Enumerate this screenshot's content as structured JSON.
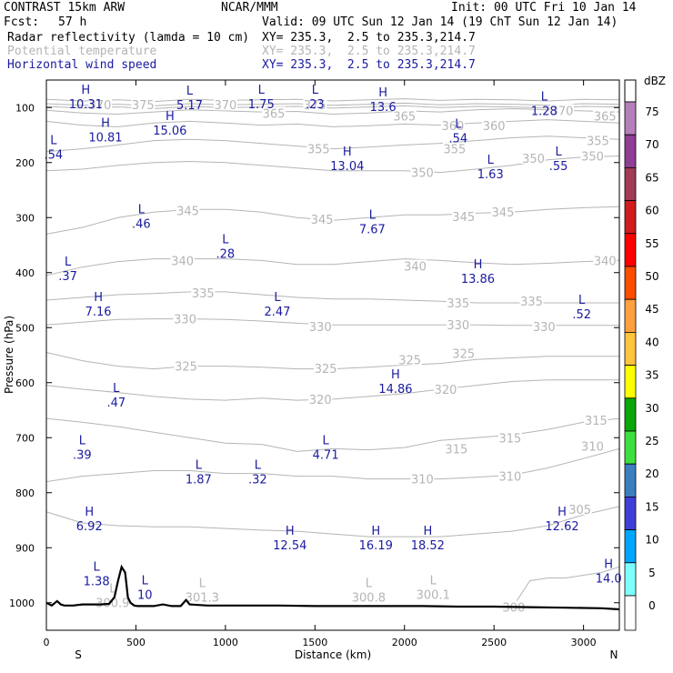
{
  "header": {
    "model": "CONTRAST 15km ARW",
    "center": "NCAR/MMM",
    "init": "Init: 00 UTC Fri 10 Jan 14",
    "fcst_label": "Fcst:",
    "fcst_value": "57 h",
    "valid": "Valid: 09 UTC Sun 12 Jan 14 (19 ChT Sun 12 Jan 14)"
  },
  "fields": [
    {
      "name": "Radar reflectivity (lamda = 10 cm)",
      "xy": "XY= 235.3,  2.5 to 235.3,214.7",
      "color": "#000000"
    },
    {
      "name": "Potential temperature",
      "xy": "XY= 235.3,  2.5 to 235.3,214.7",
      "color": "#b5b5b5"
    },
    {
      "name": "Horizontal wind speed",
      "xy": "XY= 235.3,  2.5 to 235.3,214.7",
      "color": "#1a1aa0"
    }
  ],
  "chart_data": {
    "type": "cross-section",
    "xlabel": "Distance (km)",
    "ylabel": "Pressure (hPa)",
    "xlim": [
      0,
      3200
    ],
    "ylim": [
      1050,
      50
    ],
    "x_ticks": [
      0,
      500,
      1000,
      1500,
      2000,
      2500,
      3000
    ],
    "y_ticks": [
      100,
      200,
      300,
      400,
      500,
      600,
      700,
      800,
      900,
      1000
    ],
    "south_label": "S",
    "north_label": "N",
    "south_x": 175,
    "north_x": 3125,
    "theta_lines": [
      {
        "label": "370",
        "x": [
          0,
          200,
          400,
          600,
          800,
          1000,
          1200,
          1400,
          1600,
          1800,
          2000,
          2200,
          2400,
          2600,
          2800,
          3000,
          3200
        ],
        "p": [
          85,
          88,
          86,
          89,
          85,
          87,
          86,
          85,
          88,
          86,
          84,
          87,
          85,
          86,
          88,
          85,
          86
        ]
      },
      {
        "label": "365",
        "x": [
          0,
          200,
          400,
          600,
          800,
          1000,
          1200,
          1400,
          1600,
          1800,
          2000,
          2200,
          2400,
          2600,
          2800,
          3000,
          3200
        ],
        "p": [
          105,
          110,
          112,
          108,
          104,
          106,
          108,
          107,
          112,
          110,
          106,
          108,
          104,
          102,
          104,
          106,
          108
        ]
      },
      {
        "label": "360",
        "x": [
          0,
          200,
          400,
          600,
          800,
          1000,
          1200,
          1400,
          1600,
          1800,
          2000,
          2200,
          2400,
          2600,
          2800,
          3000,
          3200
        ],
        "p": [
          125,
          132,
          135,
          128,
          125,
          128,
          132,
          130,
          135,
          133,
          130,
          132,
          128,
          125,
          122,
          125,
          128
        ]
      },
      {
        "label": "355",
        "x": [
          0,
          200,
          400,
          600,
          800,
          1000,
          1200,
          1400,
          1600,
          1800,
          2000,
          2200,
          2400,
          2600,
          2800,
          3000,
          3200
        ],
        "p": [
          180,
          175,
          168,
          160,
          158,
          160,
          165,
          170,
          175,
          172,
          168,
          165,
          160,
          155,
          152,
          155,
          158
        ]
      },
      {
        "label": "350",
        "x": [
          0,
          200,
          400,
          600,
          800,
          1000,
          1200,
          1400,
          1600,
          1800,
          2000,
          2200,
          2400,
          2600,
          2800,
          3000,
          3200
        ],
        "p": [
          215,
          212,
          205,
          200,
          198,
          200,
          205,
          210,
          215,
          215,
          215,
          218,
          212,
          205,
          195,
          190,
          188
        ]
      },
      {
        "label": "345",
        "x": [
          0,
          200,
          400,
          600,
          800,
          1000,
          1200,
          1400,
          1600,
          1800,
          2000,
          2200,
          2400,
          2600,
          2800,
          3000,
          3200
        ],
        "p": [
          330,
          318,
          300,
          290,
          285,
          285,
          290,
          300,
          305,
          300,
          295,
          295,
          292,
          290,
          285,
          282,
          280
        ]
      },
      {
        "label": "340",
        "x": [
          0,
          200,
          400,
          600,
          800,
          1000,
          1200,
          1400,
          1600,
          1800,
          2000,
          2200,
          2400,
          2600,
          2800,
          3000,
          3200
        ],
        "p": [
          405,
          390,
          380,
          375,
          375,
          375,
          378,
          385,
          385,
          380,
          375,
          378,
          382,
          385,
          383,
          380,
          378
        ]
      },
      {
        "label": "335",
        "x": [
          0,
          200,
          400,
          600,
          800,
          1000,
          1200,
          1400,
          1600,
          1800,
          2000,
          2200,
          2400,
          2600,
          2800,
          3000,
          3200
        ],
        "p": [
          450,
          445,
          440,
          438,
          435,
          435,
          440,
          445,
          448,
          448,
          450,
          452,
          455,
          455,
          455,
          455,
          455
        ]
      },
      {
        "label": "330",
        "x": [
          0,
          200,
          400,
          600,
          800,
          1000,
          1200,
          1400,
          1600,
          1800,
          2000,
          2200,
          2400,
          2600,
          2800,
          3000,
          3200
        ],
        "p": [
          495,
          490,
          485,
          484,
          484,
          485,
          488,
          492,
          495,
          495,
          495,
          495,
          495,
          496,
          496,
          496,
          496
        ]
      },
      {
        "label": "325",
        "x": [
          0,
          200,
          400,
          600,
          800,
          1000,
          1200,
          1400,
          1600,
          1800,
          2000,
          2200,
          2400,
          2600,
          2800,
          3000,
          3200
        ],
        "p": [
          545,
          560,
          570,
          575,
          570,
          570,
          572,
          575,
          575,
          572,
          568,
          565,
          558,
          555,
          552,
          552,
          552
        ]
      },
      {
        "label": "320",
        "x": [
          0,
          200,
          400,
          600,
          800,
          1000,
          1200,
          1400,
          1600,
          1800,
          2000,
          2200,
          2400,
          2600,
          2800,
          3000,
          3200
        ],
        "p": [
          605,
          612,
          618,
          625,
          630,
          632,
          628,
          632,
          630,
          625,
          620,
          612,
          605,
          598,
          595,
          595,
          595
        ]
      },
      {
        "label": "315",
        "x": [
          0,
          200,
          400,
          600,
          800,
          1000,
          1200,
          1400,
          1600,
          1800,
          2000,
          2200,
          2400,
          2600,
          2800,
          3000,
          3200
        ],
        "p": [
          665,
          672,
          680,
          690,
          700,
          710,
          712,
          725,
          720,
          722,
          718,
          705,
          700,
          695,
          685,
          672,
          665
        ]
      },
      {
        "label": "310",
        "x": [
          0,
          200,
          400,
          600,
          800,
          1000,
          1200,
          1400,
          1600,
          1800,
          2000,
          2200,
          2400,
          2600,
          2800,
          3000,
          3200
        ],
        "p": [
          780,
          770,
          765,
          760,
          760,
          765,
          765,
          770,
          770,
          775,
          775,
          775,
          772,
          768,
          755,
          738,
          720
        ]
      },
      {
        "label": "305",
        "x": [
          0,
          200,
          400,
          600,
          800,
          1000,
          1200,
          1400,
          1600,
          1800,
          2000,
          2200,
          2400,
          2600,
          2800,
          3000,
          3200
        ],
        "p": [
          835,
          855,
          860,
          862,
          862,
          865,
          868,
          870,
          875,
          880,
          880,
          880,
          875,
          870,
          860,
          840,
          825
        ]
      },
      {
        "label": "300",
        "x": [
          2600,
          2700,
          2800,
          2900,
          3000,
          3100,
          3200
        ],
        "p": [
          1010,
          960,
          955,
          955,
          950,
          945,
          935
        ]
      }
    ],
    "theta_labels": [
      {
        "text": "370",
        "x": 300,
        "p": 95
      },
      {
        "text": "375",
        "x": 540,
        "p": 95
      },
      {
        "text": "370",
        "x": 1000,
        "p": 95
      },
      {
        "text": "375",
        "x": 1500,
        "p": 95
      },
      {
        "text": "365",
        "x": 1270,
        "p": 110
      },
      {
        "text": "365",
        "x": 2000,
        "p": 115
      },
      {
        "text": "370",
        "x": 2880,
        "p": 105
      },
      {
        "text": "365",
        "x": 3120,
        "p": 115
      },
      {
        "text": "360",
        "x": 2270,
        "p": 133
      },
      {
        "text": "360",
        "x": 2500,
        "p": 133
      },
      {
        "text": "355",
        "x": 3080,
        "p": 160
      },
      {
        "text": "355",
        "x": 1520,
        "p": 175
      },
      {
        "text": "355",
        "x": 2280,
        "p": 175
      },
      {
        "text": "350",
        "x": 2720,
        "p": 192
      },
      {
        "text": "350",
        "x": 3050,
        "p": 188
      },
      {
        "text": "350",
        "x": 2100,
        "p": 218
      },
      {
        "text": "345",
        "x": 790,
        "p": 287
      },
      {
        "text": "345",
        "x": 1540,
        "p": 303
      },
      {
        "text": "345",
        "x": 2330,
        "p": 298
      },
      {
        "text": "345",
        "x": 2550,
        "p": 290
      },
      {
        "text": "340",
        "x": 3120,
        "p": 378
      },
      {
        "text": "340",
        "x": 760,
        "p": 378
      },
      {
        "text": "340",
        "x": 2060,
        "p": 388
      },
      {
        "text": "335",
        "x": 875,
        "p": 437
      },
      {
        "text": "335",
        "x": 2300,
        "p": 455
      },
      {
        "text": "335",
        "x": 2710,
        "p": 452
      },
      {
        "text": "330",
        "x": 775,
        "p": 484
      },
      {
        "text": "330",
        "x": 1530,
        "p": 498
      },
      {
        "text": "330",
        "x": 2300,
        "p": 495
      },
      {
        "text": "330",
        "x": 2780,
        "p": 498
      },
      {
        "text": "325",
        "x": 780,
        "p": 570
      },
      {
        "text": "325",
        "x": 1560,
        "p": 574
      },
      {
        "text": "325",
        "x": 2030,
        "p": 558
      },
      {
        "text": "325",
        "x": 2330,
        "p": 547
      },
      {
        "text": "320",
        "x": 1530,
        "p": 630
      },
      {
        "text": "320",
        "x": 2230,
        "p": 612
      },
      {
        "text": "315",
        "x": 3070,
        "p": 668
      },
      {
        "text": "315",
        "x": 2290,
        "p": 720
      },
      {
        "text": "315",
        "x": 2590,
        "p": 700
      },
      {
        "text": "310",
        "x": 3050,
        "p": 715
      },
      {
        "text": "310",
        "x": 2100,
        "p": 775
      },
      {
        "text": "310",
        "x": 2590,
        "p": 770
      },
      {
        "text": "305",
        "x": 2980,
        "p": 830
      },
      {
        "text": "300",
        "x": 2610,
        "p": 1008
      }
    ],
    "theta_extrema": [
      {
        "type": "L",
        "value": "300.9",
        "x": 370,
        "p": 995
      },
      {
        "type": "L",
        "value": "301.3",
        "x": 870,
        "p": 985
      },
      {
        "type": "L",
        "value": "300.8",
        "x": 1800,
        "p": 985
      },
      {
        "type": "L",
        "value": "300.1",
        "x": 2160,
        "p": 980
      }
    ],
    "wind_extrema": [
      {
        "type": "H",
        "value": "10.31",
        "x": 220,
        "p": 88
      },
      {
        "type": "L",
        "value": "5.17",
        "x": 800,
        "p": 90
      },
      {
        "type": "L",
        "value": "1.75",
        "x": 1200,
        "p": 88
      },
      {
        "type": "L",
        "value": ".23",
        "x": 1500,
        "p": 88
      },
      {
        "type": "H",
        "value": "13.6",
        "x": 1880,
        "p": 93
      },
      {
        "type": "L",
        "value": "1.28",
        "x": 2780,
        "p": 100
      },
      {
        "type": "H",
        "value": "10.81",
        "x": 330,
        "p": 148
      },
      {
        "type": "H",
        "value": "15.06",
        "x": 690,
        "p": 136
      },
      {
        "type": "L",
        "value": ".54",
        "x": 2300,
        "p": 150
      },
      {
        "type": "L",
        "value": ".54",
        "x": 40,
        "p": 180
      },
      {
        "type": "H",
        "value": "13.04",
        "x": 1680,
        "p": 200
      },
      {
        "type": "L",
        "value": "1.63",
        "x": 2480,
        "p": 215
      },
      {
        "type": "L",
        "value": ".55",
        "x": 2860,
        "p": 200
      },
      {
        "type": "L",
        "value": ".46",
        "x": 530,
        "p": 305
      },
      {
        "type": "L",
        "value": "7.67",
        "x": 1820,
        "p": 315
      },
      {
        "type": "L",
        "value": ".28",
        "x": 1000,
        "p": 360
      },
      {
        "type": "L",
        "value": ".37",
        "x": 120,
        "p": 400
      },
      {
        "type": "H",
        "value": "13.86",
        "x": 2410,
        "p": 405
      },
      {
        "type": "H",
        "value": "7.16",
        "x": 290,
        "p": 465
      },
      {
        "type": "L",
        "value": "2.47",
        "x": 1290,
        "p": 465
      },
      {
        "type": "L",
        "value": ".52",
        "x": 2990,
        "p": 470
      },
      {
        "type": "H",
        "value": "14.86",
        "x": 1950,
        "p": 605
      },
      {
        "type": "L",
        "value": ".47",
        "x": 390,
        "p": 630
      },
      {
        "type": "L",
        "value": ".39",
        "x": 200,
        "p": 725
      },
      {
        "type": "L",
        "value": "4.71",
        "x": 1560,
        "p": 725
      },
      {
        "type": "L",
        "value": "1.87",
        "x": 850,
        "p": 770
      },
      {
        "type": "L",
        "value": ".32",
        "x": 1180,
        "p": 770
      },
      {
        "type": "H",
        "value": "6.92",
        "x": 240,
        "p": 855
      },
      {
        "type": "H",
        "value": "12.62",
        "x": 2880,
        "p": 855
      },
      {
        "type": "H",
        "value": "12.54",
        "x": 1360,
        "p": 890
      },
      {
        "type": "H",
        "value": "16.19",
        "x": 1840,
        "p": 890
      },
      {
        "type": "H",
        "value": "18.52",
        "x": 2130,
        "p": 890
      },
      {
        "type": "L",
        "value": "1.38",
        "x": 280,
        "p": 955
      },
      {
        "type": "H",
        "value": "14.0",
        "x": 3140,
        "p": 950
      },
      {
        "type": "L",
        "value": "10",
        "x": 550,
        "p": 980
      }
    ],
    "terrain": {
      "x": [
        0,
        30,
        60,
        80,
        100,
        150,
        200,
        300,
        350,
        380,
        400,
        420,
        440,
        455,
        470,
        490,
        510,
        540,
        600,
        650,
        700,
        750,
        780,
        800,
        900,
        1100,
        1300,
        1500,
        1700,
        1900,
        2100,
        2300,
        2500,
        2700,
        2900,
        3100,
        3200
      ],
      "p": [
        1000,
        1005,
        997,
        1003,
        1005,
        1005,
        1003,
        1003,
        1002,
        990,
        960,
        935,
        945,
        990,
        1000,
        1005,
        1006,
        1006,
        1006,
        1003,
        1006,
        1006,
        995,
        1003,
        1005,
        1005,
        1005,
        1006,
        1006,
        1006,
        1006,
        1007,
        1007,
        1008,
        1009,
        1010,
        1012
      ]
    },
    "colorbar": {
      "unit": "dBZ",
      "labels": [
        "75",
        "70",
        "65",
        "60",
        "55",
        "50",
        "45",
        "40",
        "35",
        "30",
        "25",
        "20",
        "15",
        "10",
        "5",
        "0"
      ],
      "colors": [
        "#b57fb9",
        "#8e3e94",
        "#a13b57",
        "#d01c1c",
        "#fe0000",
        "#fe4c00",
        "#fe9f40",
        "#fec33f",
        "#fefe00",
        "#0aa70a",
        "#3ede3e",
        "#3c7fc1",
        "#3f3fd8",
        "#00a6fe",
        "#7ffefe",
        "#ffffff"
      ]
    }
  }
}
